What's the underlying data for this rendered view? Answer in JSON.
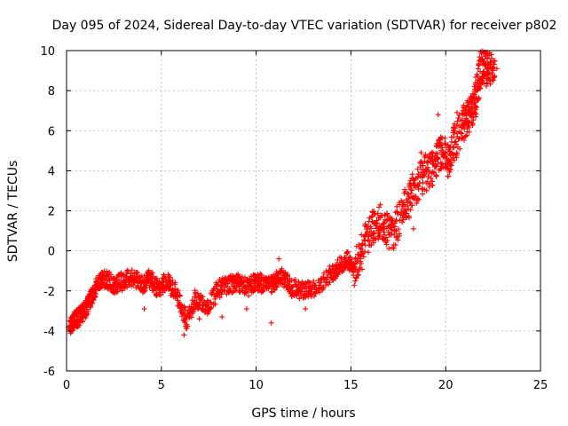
{
  "chart_data": {
    "type": "scatter",
    "title": "Day 095 of 2024, Sidereal Day-to-day VTEC variation (SDTVAR) for receiver p802",
    "xlabel": "GPS time / hours",
    "ylabel": "SDTVAR / TECUs",
    "xlim": [
      0,
      25
    ],
    "ylim": [
      -6,
      10
    ],
    "xticks": [
      0,
      5,
      10,
      15,
      20,
      25
    ],
    "yticks": [
      -6,
      -4,
      -2,
      0,
      2,
      4,
      6,
      8,
      10
    ],
    "grid": true,
    "marker": "+",
    "color": "#ff0000",
    "series": [
      {
        "name": "SDTVAR",
        "trace": [
          [
            0.15,
            -3.8
          ],
          [
            0.4,
            -3.5
          ],
          [
            0.7,
            -3.3
          ],
          [
            1.0,
            -2.9
          ],
          [
            1.3,
            -2.4
          ],
          [
            1.6,
            -1.7
          ],
          [
            2.0,
            -1.4
          ],
          [
            2.5,
            -1.7
          ],
          [
            3.0,
            -1.5
          ],
          [
            3.5,
            -1.3
          ],
          [
            4.0,
            -1.7
          ],
          [
            4.4,
            -1.4
          ],
          [
            4.8,
            -1.9
          ],
          [
            5.3,
            -1.5
          ],
          [
            5.8,
            -2.1
          ],
          [
            6.3,
            -3.6
          ],
          [
            6.8,
            -2.4
          ],
          [
            7.4,
            -2.9
          ],
          [
            8.0,
            -1.9
          ],
          [
            8.5,
            -1.7
          ],
          [
            9.0,
            -1.6
          ],
          [
            9.6,
            -1.8
          ],
          [
            10.0,
            -1.5
          ],
          [
            10.4,
            -1.7
          ],
          [
            10.9,
            -1.6
          ],
          [
            11.3,
            -1.2
          ],
          [
            11.8,
            -1.8
          ],
          [
            12.4,
            -2.0
          ],
          [
            13.0,
            -1.9
          ],
          [
            13.8,
            -1.3
          ],
          [
            14.3,
            -0.8
          ],
          [
            14.8,
            -0.4
          ],
          [
            15.2,
            -1.0
          ],
          [
            15.7,
            0.3
          ],
          [
            16.2,
            1.3
          ],
          [
            16.7,
            1.5
          ],
          [
            17.2,
            0.6
          ],
          [
            17.8,
            2.1
          ],
          [
            18.3,
            3.0
          ],
          [
            18.8,
            3.8
          ],
          [
            19.3,
            4.1
          ],
          [
            19.7,
            5.0
          ],
          [
            20.1,
            4.6
          ],
          [
            20.5,
            5.5
          ],
          [
            21.0,
            6.4
          ],
          [
            21.3,
            6.8
          ],
          [
            21.6,
            7.6
          ],
          [
            21.9,
            9.3
          ],
          [
            22.2,
            9.0
          ],
          [
            22.6,
            9.4
          ]
        ]
      }
    ]
  }
}
